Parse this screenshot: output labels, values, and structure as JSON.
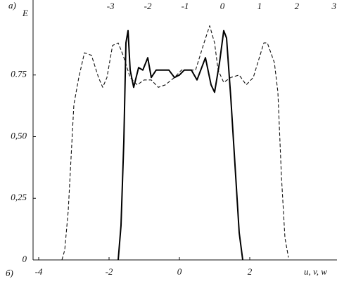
{
  "chart_data": {
    "type": "line",
    "panel_top": "a)",
    "panel_bottom": "б)",
    "ylabel": "E",
    "xlabel": "u, v, w",
    "xlim": [
      -4.16,
      4.48
    ],
    "xticks": [
      -4,
      -2,
      0,
      2
    ],
    "x2lim": [
      -5.08,
      3.08
    ],
    "x2ticks": [
      -3,
      -2,
      -1,
      0,
      1,
      2,
      3
    ],
    "ylim": [
      0,
      1
    ],
    "yticks": [
      0,
      {
        "value": 0.25,
        "label": "0,25"
      },
      {
        "value": 0.5,
        "label": "0,50"
      },
      {
        "value": 0.75,
        "label": "0.75"
      }
    ],
    "series": [
      {
        "color": "#111111",
        "dash": true,
        "x": [
          -3.34,
          -3.26,
          -3.16,
          -3.0,
          -2.86,
          -2.7,
          -2.5,
          -2.3,
          -2.18,
          -2.06,
          -1.9,
          -1.74,
          -1.6,
          -1.4,
          -1.2,
          -1.0,
          -0.8,
          -0.6,
          -0.4,
          -0.14,
          0.06,
          0.26,
          0.46,
          0.7,
          0.86,
          1.0,
          1.1,
          1.26,
          1.46,
          1.7,
          1.9,
          2.1,
          2.4,
          2.5,
          2.7,
          2.8,
          2.9,
          3.0,
          3.1
        ],
        "values": [
          0,
          0.04,
          0.2,
          0.63,
          0.74,
          0.84,
          0.83,
          0.74,
          0.7,
          0.74,
          0.87,
          0.88,
          0.83,
          0.74,
          0.71,
          0.73,
          0.73,
          0.7,
          0.71,
          0.74,
          0.77,
          0.77,
          0.77,
          0.88,
          0.95,
          0.88,
          0.77,
          0.72,
          0.74,
          0.75,
          0.71,
          0.74,
          0.88,
          0.88,
          0.8,
          0.68,
          0.34,
          0.09,
          0.01
        ]
      },
      {
        "color": "#000000",
        "dash": false,
        "x": [
          -1.74,
          -1.66,
          -1.58,
          -1.52,
          -1.46,
          -1.4,
          -1.3,
          -1.16,
          -1.04,
          -0.9,
          -0.8,
          -0.66,
          -0.5,
          -0.3,
          -0.14,
          0,
          0.14,
          0.34,
          0.5,
          0.74,
          0.9,
          1.0,
          1.14,
          1.26,
          1.34,
          1.46,
          1.6,
          1.7,
          1.8
        ],
        "values": [
          0,
          0.14,
          0.48,
          0.88,
          0.93,
          0.77,
          0.7,
          0.78,
          0.77,
          0.82,
          0.74,
          0.77,
          0.77,
          0.77,
          0.74,
          0.75,
          0.77,
          0.77,
          0.73,
          0.82,
          0.71,
          0.68,
          0.8,
          0.93,
          0.9,
          0.66,
          0.34,
          0.11,
          0
        ]
      }
    ]
  }
}
